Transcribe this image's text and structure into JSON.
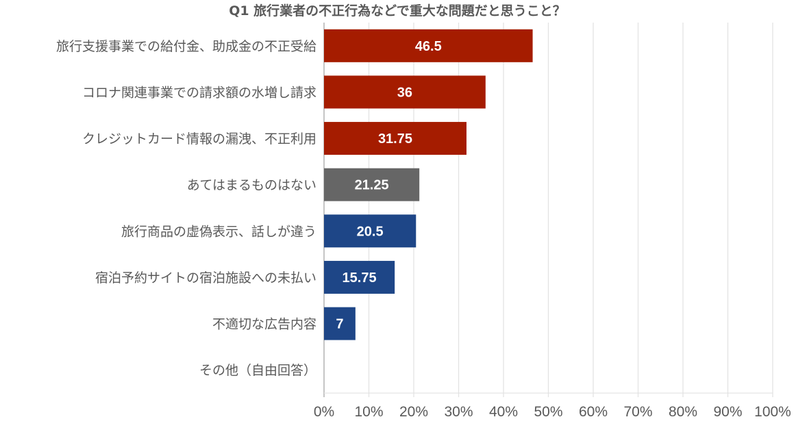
{
  "chart_data": {
    "type": "bar",
    "orientation": "horizontal",
    "title": "Q1 旅行業者の不正行為などで重大な問題だと思うこと？",
    "categories": [
      "旅行支援事業での給付金、助成金の不正受給",
      "コロナ関連事業での請求額の水増し請求",
      "クレジットカード情報の漏洩、不正利用",
      "あてはまるものはない",
      "旅行商品の虚偽表示、話しが違う",
      "宿泊予約サイトの宿泊施設への未払い",
      "不適切な広告内容",
      "その他（自由回答）"
    ],
    "values": [
      46.5,
      36,
      31.75,
      21.25,
      20.5,
      15.75,
      7,
      0
    ],
    "value_labels": [
      "46.5",
      "36",
      "31.75",
      "21.25",
      "20.5",
      "15.75",
      "7",
      ""
    ],
    "colors": [
      "#A51C00",
      "#A51C00",
      "#A51C00",
      "#666666",
      "#1E4687",
      "#1E4687",
      "#1E4687",
      "#1E4687"
    ],
    "xlim": [
      0,
      100
    ],
    "x_ticks": [
      "0%",
      "10%",
      "20%",
      "30%",
      "40%",
      "50%",
      "60%",
      "70%",
      "80%",
      "90%",
      "100%"
    ],
    "grid": true,
    "legend": "none",
    "xlabel": "",
    "ylabel": ""
  }
}
